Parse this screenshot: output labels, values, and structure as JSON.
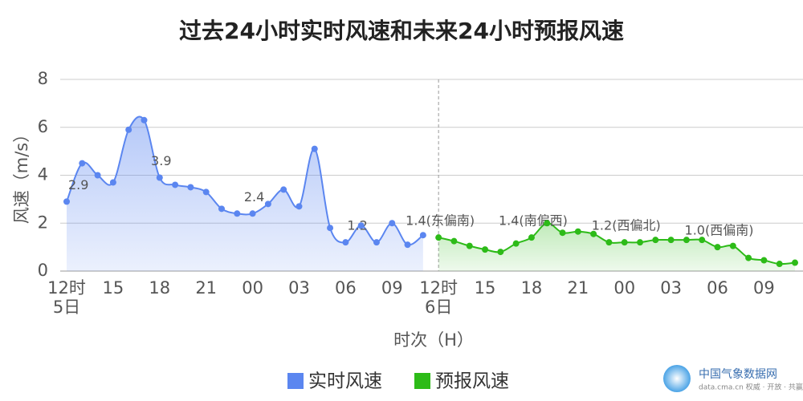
{
  "chart_data": {
    "type": "line",
    "title": "过去24小时实时风速和未来24小时预报风速",
    "x_label": "时次（H）",
    "y_label": "风速（m/s）",
    "categories": [
      "12时\n5日",
      null,
      null,
      "15",
      null,
      null,
      "18",
      null,
      null,
      "21",
      null,
      null,
      "00",
      null,
      null,
      "03",
      null,
      null,
      "06",
      null,
      null,
      "09",
      null,
      null,
      "12时\n6日",
      null,
      null,
      "15",
      null,
      null,
      "18",
      null,
      null,
      "21",
      null,
      null,
      "00",
      null,
      null,
      "03",
      null,
      null,
      "06",
      null,
      null,
      "09",
      null,
      null
    ],
    "series": [
      {
        "name": "实时风速",
        "color": "#5b86f0",
        "values": [
          2.9,
          4.5,
          4.0,
          3.7,
          5.9,
          6.3,
          3.9,
          3.6,
          3.5,
          3.3,
          2.6,
          2.4,
          2.4,
          2.8,
          3.4,
          2.7,
          5.1,
          1.8,
          1.2,
          1.9,
          1.2,
          2.0,
          1.1,
          1.5,
          null,
          null,
          null,
          null,
          null,
          null,
          null,
          null,
          null,
          null,
          null,
          null,
          null,
          null,
          null,
          null,
          null,
          null,
          null,
          null,
          null,
          null,
          null,
          null
        ],
        "value_labels": [
          "2.9",
          null,
          null,
          null,
          null,
          null,
          "3.9",
          null,
          null,
          null,
          null,
          null,
          "2.4",
          null,
          null,
          null,
          null,
          null,
          "1.2",
          null,
          null,
          null,
          null,
          null,
          null,
          null,
          null,
          null,
          null,
          null,
          null,
          null,
          null,
          null,
          null,
          null,
          null,
          null,
          null,
          null,
          null,
          null,
          null,
          null,
          null,
          null,
          null,
          null
        ]
      },
      {
        "name": "预报风速",
        "color": "#2dbb18",
        "values": [
          null,
          null,
          null,
          null,
          null,
          null,
          null,
          null,
          null,
          null,
          null,
          null,
          null,
          null,
          null,
          null,
          null,
          null,
          null,
          null,
          null,
          null,
          null,
          null,
          1.4,
          1.25,
          1.05,
          0.9,
          0.8,
          1.15,
          1.4,
          2.0,
          1.6,
          1.65,
          1.55,
          1.2,
          1.2,
          1.2,
          1.3,
          1.3,
          1.3,
          1.3,
          1.0,
          1.05,
          0.55,
          0.45,
          0.3,
          0.35
        ],
        "value_labels": [
          null,
          null,
          null,
          null,
          null,
          null,
          null,
          null,
          null,
          null,
          null,
          null,
          null,
          null,
          null,
          null,
          null,
          null,
          null,
          null,
          null,
          null,
          null,
          null,
          "1.4(东偏南)",
          null,
          null,
          null,
          null,
          null,
          "1.4(南偏西)",
          null,
          null,
          null,
          null,
          null,
          "1.2(西偏北)",
          null,
          null,
          null,
          null,
          null,
          "1.0(西偏南)",
          null,
          null,
          null,
          null,
          null
        ]
      }
    ],
    "ylim": [
      0,
      8
    ],
    "yticks": [
      0,
      2,
      4,
      6,
      8
    ],
    "grid": true,
    "smooth": true,
    "area": true,
    "legend": "bottom",
    "logo_text": "中国气象数据网",
    "logo_subtext": "data.cma.cn 权威 · 开放 · 共赢"
  }
}
